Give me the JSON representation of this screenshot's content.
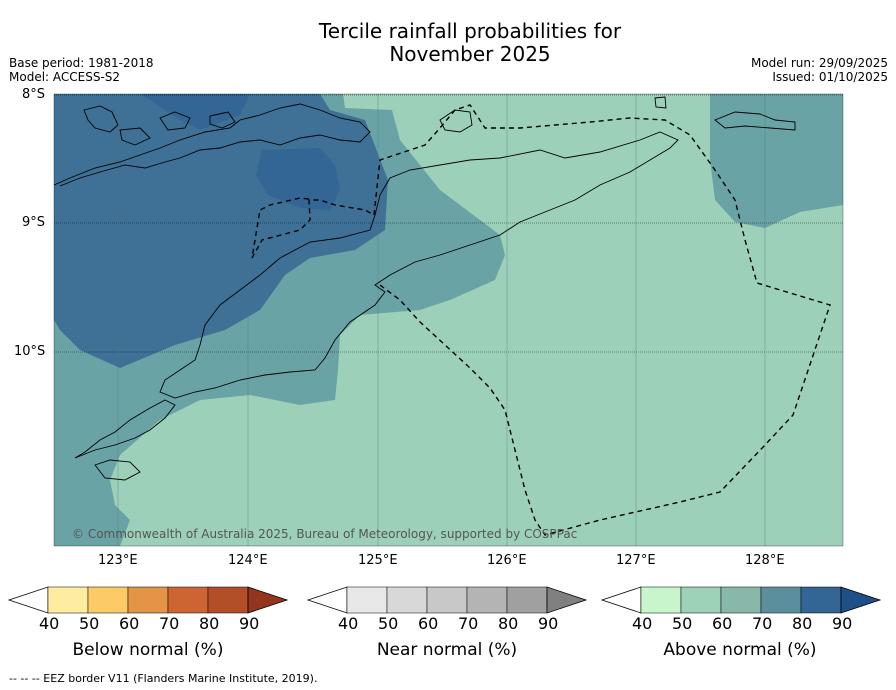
{
  "title_line1": "Tercile rainfall probabilities for",
  "title_line2": "November 2025",
  "base_period": "Base period: 1981-2018",
  "model": "Model: ACCESS-S2",
  "model_run": "Model run: 29/09/2025",
  "issued": "Issued: 01/10/2025",
  "copyright": "© Commonwealth of Australia 2025, Bureau of Meteorology, supported by COSPPac",
  "lat_labels": [
    "8°S",
    "9°S",
    "10°S"
  ],
  "lon_labels": [
    "123°E",
    "124°E",
    "125°E",
    "126°E",
    "127°E",
    "128°E"
  ],
  "colorbars": [
    {
      "label": "Below normal (%)",
      "ticks": [
        "40",
        "50",
        "60",
        "70",
        "80",
        "90"
      ],
      "colors": [
        "#ffffff",
        "#feeda0",
        "#fdcb66",
        "#e39447",
        "#cd6532",
        "#b24e28",
        "#94351f"
      ]
    },
    {
      "label": "Near normal (%)",
      "ticks": [
        "40",
        "50",
        "60",
        "70",
        "80",
        "90"
      ],
      "colors": [
        "#ffffff",
        "#e8e8e8",
        "#d8d8d8",
        "#c8c8c8",
        "#b4b4b4",
        "#a0a0a0",
        "#808080"
      ]
    },
    {
      "label": "Above normal (%)",
      "ticks": [
        "40",
        "50",
        "60",
        "70",
        "80",
        "90"
      ],
      "colors": [
        "#ffffff",
        "#c9f5cc",
        "#9dd2b9",
        "#87b8aa",
        "#5c8f9d",
        "#336595",
        "#1f4f87"
      ]
    }
  ],
  "footer": "--  --  -- EEZ border V11 (Flanders Marine Institute, 2019).",
  "map_colors": {
    "sixty": "#9dd0b9",
    "seventy": "#6aa3a5",
    "eighty": "#3f7197",
    "ninety": "#336595"
  }
}
